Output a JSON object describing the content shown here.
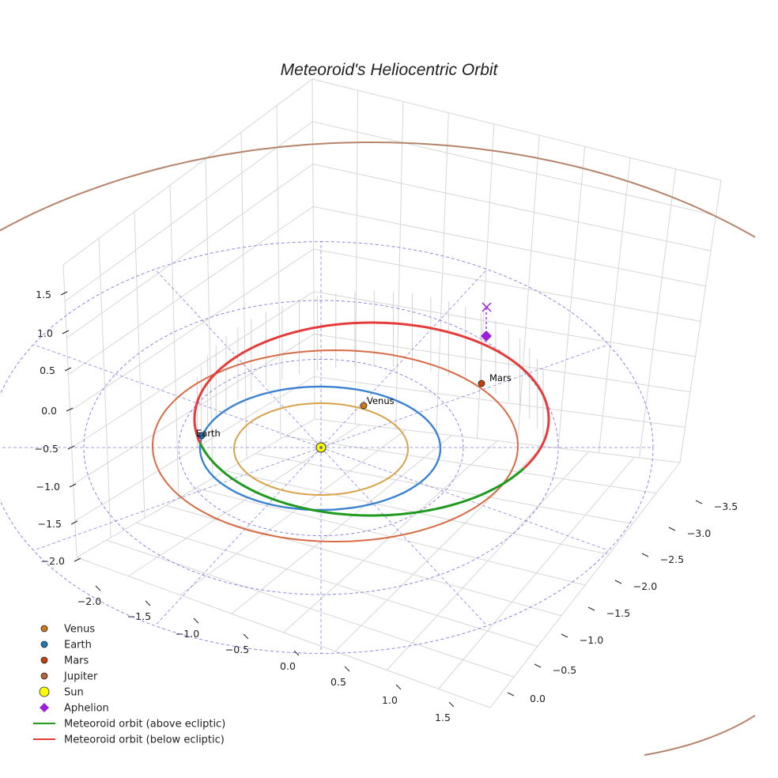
{
  "chart_data": {
    "type": "scatter3d",
    "title": "Meteoroid's Heliocentric Orbit",
    "axes": {
      "x_ticks": [
        "−2.0",
        "−1.5",
        "−1.0",
        "−0.5",
        "0.0",
        "0.5",
        "1.0",
        "1.5"
      ],
      "y_ticks": [
        "−3.5",
        "−3.0",
        "−2.5",
        "−2.0",
        "−1.5",
        "−1.0",
        "−0.5",
        "0.0"
      ],
      "z_ticks": [
        "1.5",
        "1.0",
        "0.5",
        "0.0",
        "−0.5",
        "−1.0",
        "−1.5",
        "−2.0"
      ],
      "grid": true
    },
    "planets": [
      {
        "name": "Venus",
        "semi_major_au": 0.72,
        "marker_color": "#cc7a1c",
        "orbit_color": "#d8a24a",
        "label": "Venus"
      },
      {
        "name": "Earth",
        "semi_major_au": 1.0,
        "marker_color": "#1f77b4",
        "orbit_color": "#3b82d0",
        "label": "Earth"
      },
      {
        "name": "Mars",
        "semi_major_au": 1.52,
        "marker_color": "#c2410c",
        "orbit_color": "#d86a45",
        "label": "Mars"
      },
      {
        "name": "Jupiter",
        "semi_major_au": 5.2,
        "marker_color": "#b5643a",
        "orbit_color": "#b5846a",
        "label": ""
      }
    ],
    "sun": {
      "name": "Sun",
      "color": "#ffff00"
    },
    "aphelion": {
      "name": "Aphelion",
      "color": "#9b1fd6",
      "marker": "diamond"
    },
    "meteoroid_orbit": {
      "above_label": "Meteoroid orbit (above ecliptic)",
      "above_color": "#1f9a1f",
      "below_label": "Meteoroid orbit (below ecliptic)",
      "below_color": "#e63b3b"
    },
    "reference_circles_au": [
      1.5,
      2.5,
      3.5
    ],
    "reference_color": "#5a5ae0",
    "legend": {
      "position": "bottom-left",
      "entries": [
        {
          "label": "Venus",
          "kind": "dot",
          "color": "#cc7a1c"
        },
        {
          "label": "Earth",
          "kind": "dot",
          "color": "#1f77b4"
        },
        {
          "label": "Mars",
          "kind": "dot",
          "color": "#c2410c"
        },
        {
          "label": "Jupiter",
          "kind": "dot",
          "color": "#b5643a"
        },
        {
          "label": "Sun",
          "kind": "sun",
          "color": "#ffff00"
        },
        {
          "label": "Aphelion",
          "kind": "diamond",
          "color": "#9b1fd6"
        },
        {
          "label": "Meteoroid orbit (above ecliptic)",
          "kind": "line",
          "color": "#1f9a1f"
        },
        {
          "label": "Meteoroid orbit (below ecliptic)",
          "kind": "line",
          "color": "#e63b3b"
        }
      ]
    }
  }
}
